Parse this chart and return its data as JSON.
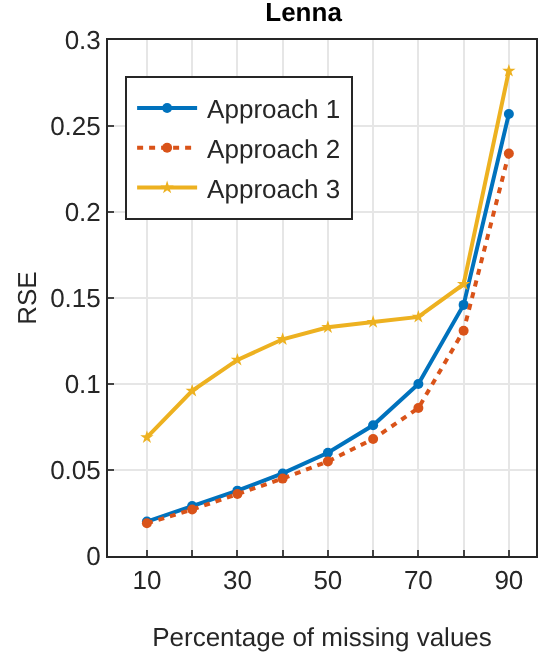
{
  "chart_data": {
    "type": "line",
    "title": "Lenna",
    "xlabel": "Percentage of missing values",
    "ylabel": "RSE",
    "x": [
      10,
      20,
      30,
      40,
      50,
      60,
      70,
      80,
      90
    ],
    "series": [
      {
        "name": "Approach 1",
        "color": "#0072bd",
        "marker": "circle",
        "line_style": "solid",
        "values": [
          0.02,
          0.029,
          0.038,
          0.048,
          0.06,
          0.076,
          0.1,
          0.146,
          0.257
        ]
      },
      {
        "name": "Approach 2",
        "color": "#d95319",
        "marker": "circle",
        "line_style": "dotted",
        "values": [
          0.019,
          0.027,
          0.036,
          0.045,
          0.055,
          0.068,
          0.086,
          0.131,
          0.234
        ]
      },
      {
        "name": "Approach 3",
        "color": "#edb120",
        "marker": "star",
        "line_style": "solid",
        "values": [
          0.069,
          0.096,
          0.114,
          0.126,
          0.133,
          0.136,
          0.139,
          0.158,
          0.282
        ]
      }
    ],
    "xlim": [
      1.4,
      96
    ],
    "xticks": [
      10,
      {
        "value": 20,
        "label": null
      },
      30,
      {
        "value": 40,
        "label": null
      },
      50,
      {
        "value": 60,
        "label": null
      },
      70,
      {
        "value": 80,
        "label": null
      },
      90
    ],
    "ylim": [
      0,
      0.3
    ],
    "yticks": [
      0,
      0.05,
      0.1,
      0.15,
      0.2,
      0.25,
      0.3
    ],
    "grid": true,
    "legend": "top left"
  }
}
